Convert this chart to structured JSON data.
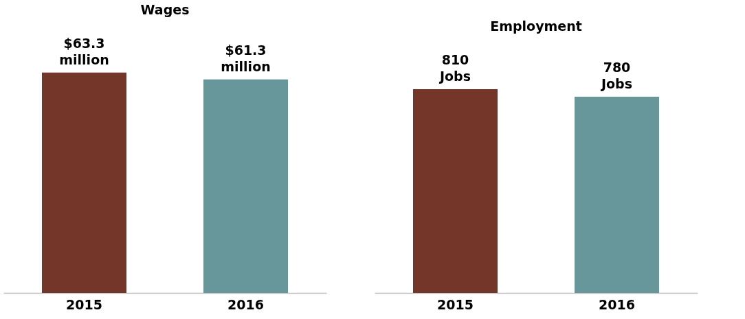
{
  "chart_data": [
    {
      "type": "bar",
      "title": "Wages",
      "categories": [
        "2015",
        "2016"
      ],
      "values": [
        63.3,
        61.3
      ],
      "colors": [
        "#75362a",
        "#67979b"
      ],
      "value_labels": [
        "$63.3 million",
        "$61.3 million"
      ],
      "tick_labels": "x",
      "grid": false
    },
    {
      "type": "bar",
      "title": "Employment",
      "categories": [
        "2015",
        "2016"
      ],
      "values": [
        810,
        780
      ],
      "colors": [
        "#75362a",
        "#67979b"
      ],
      "value_labels": [
        "810 Jobs",
        "780 Jobs"
      ],
      "tick_labels": "x",
      "grid": false
    }
  ]
}
